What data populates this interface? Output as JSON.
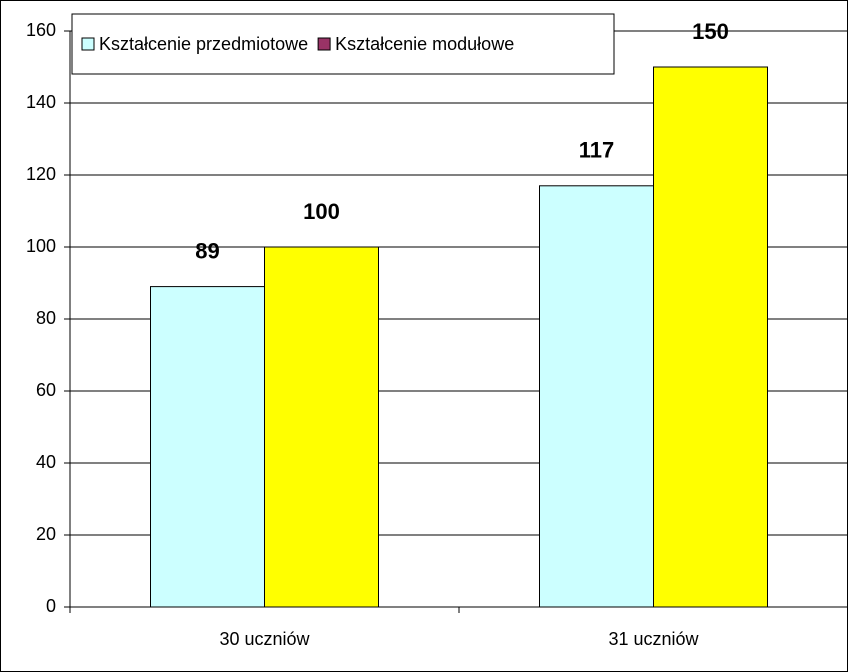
{
  "chart_data": {
    "type": "bar",
    "categories": [
      "30 uczniów",
      "31 uczniów"
    ],
    "series": [
      {
        "name": "Kształcenie przedmiotowe",
        "color": "#ccffff",
        "legend_color": "#ccffff",
        "values": [
          89,
          117
        ]
      },
      {
        "name": "Kształcenie modułowe",
        "color": "#ffff00",
        "legend_color": "#993366",
        "values": [
          100,
          150
        ]
      }
    ],
    "ylim": [
      0,
      160
    ],
    "yticks": [
      0,
      20,
      40,
      60,
      80,
      100,
      120,
      140,
      160
    ],
    "grid": true,
    "legend": "top-left"
  }
}
